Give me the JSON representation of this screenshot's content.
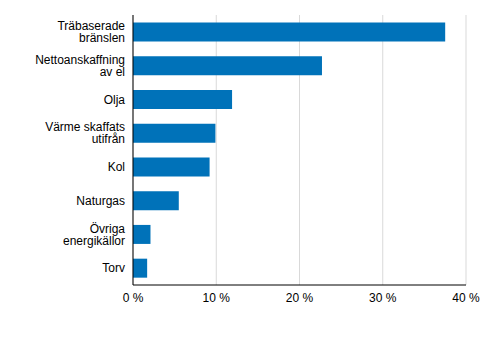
{
  "chart_data": {
    "type": "bar",
    "orientation": "horizontal",
    "categories": [
      "Träbaserade bränslen",
      "Nettoanskaffning av el",
      "Olja",
      "Värme skaffats utifrån",
      "Kol",
      "Naturgas",
      "Övriga energikällor",
      "Torv"
    ],
    "values": [
      37.5,
      22.7,
      11.9,
      9.9,
      9.2,
      5.5,
      2.1,
      1.7
    ],
    "color": "#0072b9",
    "xlim": [
      0,
      40
    ],
    "xticks": [
      {
        "value": 0,
        "label": "0 %"
      },
      {
        "value": 10,
        "label": "10 %"
      },
      {
        "value": 20,
        "label": "20 %"
      },
      {
        "value": 30,
        "label": "30 %"
      },
      {
        "value": 40,
        "label": "40 %"
      }
    ],
    "grid": true
  }
}
